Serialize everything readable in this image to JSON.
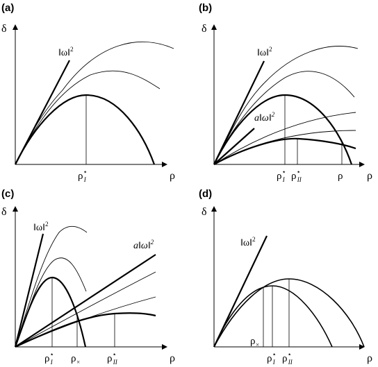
{
  "panels": {
    "a": {
      "label": "(a)",
      "y_axis": "δ",
      "x_axis": "ρ",
      "line_label": {
        "main": "‖ω‖",
        "sup": "2"
      },
      "ticks": [
        {
          "main": "ρ",
          "sup": "⋆",
          "sub": "I"
        }
      ]
    },
    "b": {
      "label": "(b)",
      "y_axis": "δ",
      "x_axis": "ρ",
      "line_label": {
        "main": "‖ω‖",
        "sup": "2"
      },
      "line2_label": {
        "main": "a‖ω‖",
        "sup": "2"
      },
      "ticks": [
        {
          "main": "ρ",
          "sup": "⋆",
          "sub": "I"
        },
        {
          "main": "ρ",
          "sup": "⋆",
          "sub": "II"
        },
        {
          "main": "ρ",
          "sup": "",
          "sub": ""
        }
      ]
    },
    "c": {
      "label": "(c)",
      "y_axis": "δ",
      "x_axis": "ρ",
      "line_label": {
        "main": "‖ω‖",
        "sup": "2"
      },
      "line2_label": {
        "main": "a‖ω‖",
        "sup": "2"
      },
      "ticks": [
        {
          "main": "ρ",
          "sup": "⋆",
          "sub": "I"
        },
        {
          "main": "ρ",
          "sup": "",
          "sub": "×"
        },
        {
          "main": "ρ",
          "sup": "⋆",
          "sub": "II"
        }
      ]
    },
    "d": {
      "label": "(d)",
      "y_axis": "δ",
      "x_axis": "ρ",
      "line_label": {
        "main": "‖ω‖",
        "sup": "2"
      },
      "ticks": [
        {
          "main": "ρ",
          "sup": "",
          "sub": "×"
        },
        {
          "main": "ρ",
          "sup": "⋆",
          "sub": "I"
        },
        {
          "main": "ρ",
          "sup": "⋆",
          "sub": "II"
        }
      ]
    }
  }
}
